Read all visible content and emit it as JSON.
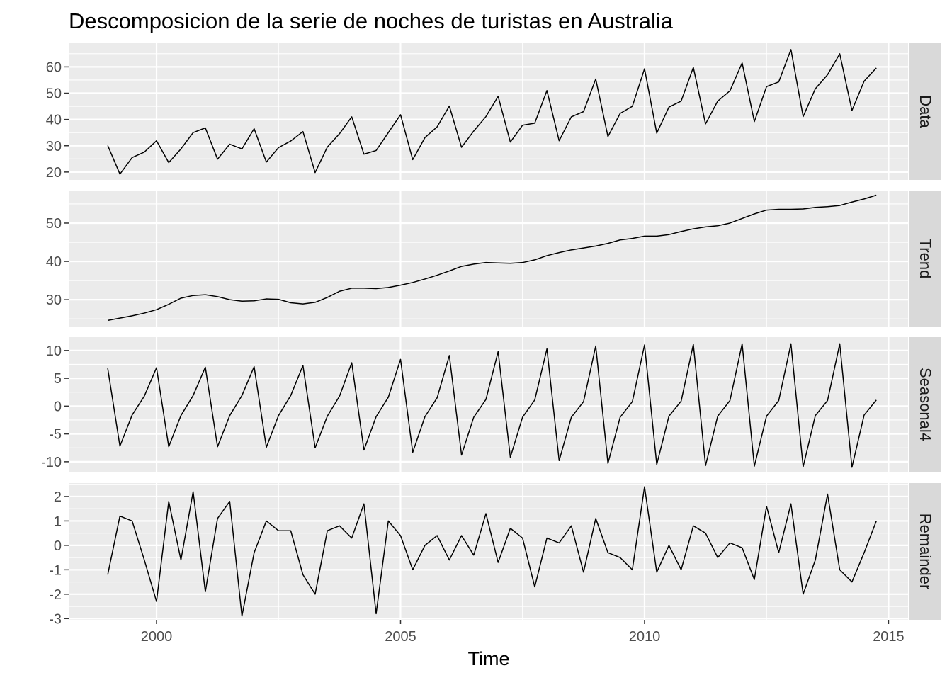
{
  "chart_data": {
    "type": "line",
    "title": "Descomposicion de la serie de noches de turistas en Australia",
    "xlabel": "Time",
    "ylabel": "",
    "x_start": 1999.0,
    "x_step": 0.25,
    "xlim": [
      1998.2,
      2015.4
    ],
    "x_ticks": [
      2000,
      2005,
      2010,
      2015
    ],
    "x_tick_labels": [
      "2000",
      "2005",
      "2010",
      "2015"
    ],
    "grid": true,
    "colors": {
      "panel_bg": "#ebebeb",
      "grid": "#ffffff",
      "strip_bg": "#d9d9d9",
      "line": "#000000"
    },
    "panels": [
      {
        "name": "Data",
        "ylim": [
          17.0,
          69.0
        ],
        "y_ticks": [
          20,
          30,
          40,
          50,
          60
        ],
        "y_tick_labels": [
          "20",
          "30",
          "40",
          "50",
          "60"
        ],
        "values": [
          30.1,
          19.2,
          25.5,
          27.6,
          31.9,
          23.6,
          28.8,
          35.0,
          36.8,
          24.9,
          30.6,
          28.8,
          36.5,
          23.8,
          29.3,
          31.8,
          35.4,
          19.8,
          29.5,
          34.6,
          41.0,
          26.8,
          28.2,
          35.0,
          41.8,
          24.7,
          33.1,
          37.2,
          45.1,
          29.4,
          35.6,
          41.1,
          48.8,
          31.4,
          37.8,
          38.6,
          51.0,
          31.9,
          41.0,
          43.0,
          55.4,
          33.5,
          42.3,
          45.0,
          59.3,
          34.8,
          44.7,
          47.0,
          59.8,
          38.3,
          47.0,
          50.9,
          61.5,
          39.2,
          52.5,
          54.3,
          66.6,
          41.1,
          51.7,
          57.0,
          65.0,
          43.4,
          54.6,
          59.6
        ]
      },
      {
        "name": "Trend",
        "ylim": [
          23.0,
          58.5
        ],
        "y_ticks": [
          30,
          40,
          50
        ],
        "y_tick_labels": [
          "30",
          "40",
          "50"
        ],
        "values": [
          24.6,
          25.2,
          25.8,
          26.5,
          27.4,
          28.8,
          30.4,
          31.1,
          31.3,
          30.8,
          30.0,
          29.6,
          29.7,
          30.2,
          30.1,
          29.2,
          28.9,
          29.3,
          30.6,
          32.2,
          33.0,
          33.0,
          32.9,
          33.2,
          33.8,
          34.5,
          35.4,
          36.4,
          37.5,
          38.7,
          39.3,
          39.7,
          39.6,
          39.5,
          39.7,
          40.4,
          41.5,
          42.3,
          43.0,
          43.5,
          44.0,
          44.7,
          45.6,
          46.0,
          46.6,
          46.6,
          47.0,
          47.8,
          48.5,
          49.0,
          49.3,
          50.0,
          51.2,
          52.4,
          53.4,
          53.6,
          53.6,
          53.7,
          54.1,
          54.3,
          54.6,
          55.5,
          56.3,
          57.3
        ]
      },
      {
        "name": "Seasonal4",
        "ylim": [
          -11.8,
          12.4
        ],
        "y_ticks": [
          -10,
          -5,
          0,
          5,
          10
        ],
        "y_tick_labels": [
          "-10",
          "-5",
          "0",
          "5",
          "10"
        ],
        "values": [
          6.8,
          -7.2,
          -1.6,
          1.8,
          6.9,
          -7.3,
          -1.7,
          1.9,
          7.0,
          -7.3,
          -1.7,
          1.9,
          7.1,
          -7.4,
          -1.7,
          1.9,
          7.3,
          -7.5,
          -1.8,
          1.8,
          7.8,
          -7.9,
          -1.9,
          1.6,
          8.4,
          -8.3,
          -1.9,
          1.5,
          9.1,
          -8.8,
          -2.0,
          1.2,
          9.8,
          -9.2,
          -2.0,
          1.1,
          10.3,
          -9.8,
          -2.0,
          0.8,
          10.8,
          -10.3,
          -2.0,
          0.8,
          11.0,
          -10.5,
          -1.8,
          0.9,
          11.1,
          -10.7,
          -1.8,
          1.0,
          11.2,
          -10.8,
          -1.8,
          1.0,
          11.2,
          -10.9,
          -1.7,
          1.0,
          11.2,
          -11.0,
          -1.6,
          1.1
        ]
      },
      {
        "name": "Remainder",
        "ylim": [
          -3.05,
          2.55
        ],
        "y_ticks": [
          -3,
          -2,
          -1,
          0,
          1,
          2
        ],
        "y_tick_labels": [
          "-3",
          "-2",
          "-1",
          "0",
          "1",
          "2"
        ],
        "values": [
          -1.2,
          1.2,
          1.0,
          -0.6,
          -2.3,
          1.8,
          -0.6,
          2.2,
          -1.9,
          1.1,
          1.8,
          -2.9,
          -0.3,
          1.0,
          0.6,
          0.6,
          -1.2,
          -2.0,
          0.6,
          0.8,
          0.3,
          1.7,
          -2.8,
          1.0,
          0.4,
          -1.0,
          0.0,
          0.4,
          -0.6,
          0.4,
          -0.4,
          1.3,
          -0.7,
          0.7,
          0.3,
          -1.7,
          0.3,
          0.1,
          0.8,
          -1.1,
          1.1,
          -0.3,
          -0.5,
          -1.0,
          2.4,
          -1.1,
          0.0,
          -1.0,
          0.8,
          0.5,
          -0.5,
          0.1,
          -0.1,
          -1.4,
          1.6,
          -0.3,
          1.7,
          -2.0,
          -0.6,
          2.1,
          -1.0,
          -1.5,
          -0.3,
          1.0
        ]
      }
    ]
  }
}
